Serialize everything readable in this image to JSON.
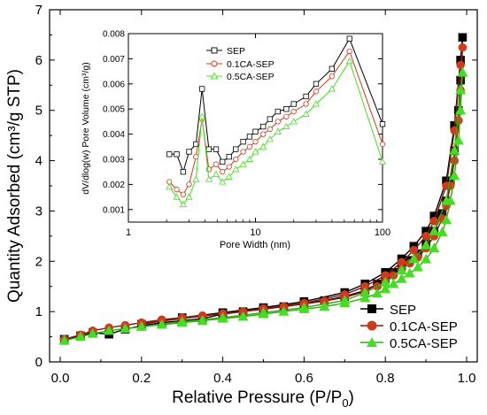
{
  "chart_data": [
    {
      "type": "line",
      "xlabel": "Relative Pressure (P/P",
      "xlabel_sub": "0",
      "xlabel_close": ")",
      "ylabel": "Quantity Adsorbed (cm³/g STP)",
      "xlim": [
        0.0,
        1.0
      ],
      "ylim": [
        0,
        7
      ],
      "xticks": [
        "0.0",
        "0.2",
        "0.4",
        "0.6",
        "0.8",
        "1.0"
      ],
      "yticks": [
        "0",
        "1",
        "2",
        "3",
        "4",
        "5",
        "6",
        "7"
      ],
      "legend_position": "bottom-right",
      "series": [
        {
          "name": "SEP",
          "color": "#000000",
          "marker": "square",
          "x": [
            0.01,
            0.05,
            0.08,
            0.12,
            0.16,
            0.2,
            0.25,
            0.3,
            0.35,
            0.4,
            0.45,
            0.5,
            0.55,
            0.6,
            0.65,
            0.7,
            0.75,
            0.78,
            0.8,
            0.82,
            0.84,
            0.86,
            0.88,
            0.9,
            0.92,
            0.94,
            0.95,
            0.96,
            0.97,
            0.98,
            0.985,
            0.99,
            0.985,
            0.97,
            0.95,
            0.92,
            0.9,
            0.87,
            0.84,
            0.8,
            0.75,
            0.7,
            0.6,
            0.5,
            0.4,
            0.3,
            0.2
          ],
          "y": [
            0.45,
            0.52,
            0.58,
            0.55,
            0.65,
            0.72,
            0.78,
            0.82,
            0.86,
            0.95,
            1.0,
            1.05,
            1.1,
            1.16,
            1.22,
            1.3,
            1.42,
            1.55,
            1.65,
            1.78,
            1.9,
            2.02,
            2.15,
            2.35,
            2.6,
            2.95,
            3.2,
            3.6,
            4.2,
            5.0,
            5.6,
            6.45,
            6.0,
            4.7,
            3.6,
            2.9,
            2.6,
            2.3,
            2.05,
            1.78,
            1.55,
            1.38,
            1.2,
            1.08,
            0.98,
            0.88,
            0.75
          ]
        },
        {
          "name": "0.1CA-SEP",
          "color": "#d03a1a",
          "line_color": "#7a1a10",
          "marker": "circle",
          "x": [
            0.01,
            0.05,
            0.08,
            0.12,
            0.16,
            0.2,
            0.25,
            0.3,
            0.35,
            0.4,
            0.45,
            0.5,
            0.55,
            0.6,
            0.65,
            0.7,
            0.75,
            0.78,
            0.8,
            0.82,
            0.84,
            0.86,
            0.88,
            0.9,
            0.92,
            0.94,
            0.95,
            0.96,
            0.97,
            0.98,
            0.985,
            0.99,
            0.985,
            0.97,
            0.95,
            0.92,
            0.9,
            0.87,
            0.84,
            0.8,
            0.75,
            0.7,
            0.6,
            0.5,
            0.4,
            0.3,
            0.2
          ],
          "y": [
            0.45,
            0.54,
            0.62,
            0.68,
            0.73,
            0.78,
            0.84,
            0.88,
            0.92,
            0.96,
            1.0,
            1.05,
            1.1,
            1.15,
            1.21,
            1.28,
            1.4,
            1.5,
            1.6,
            1.72,
            1.84,
            1.96,
            2.08,
            2.26,
            2.5,
            2.85,
            3.1,
            3.5,
            4.0,
            4.8,
            5.4,
            6.25,
            5.9,
            4.6,
            3.5,
            2.8,
            2.5,
            2.22,
            1.98,
            1.72,
            1.5,
            1.34,
            1.17,
            1.06,
            0.96,
            0.86,
            0.76
          ]
        },
        {
          "name": "0.5CA-SEP",
          "color": "#44dd22",
          "line_color": "#33aa11",
          "marker": "triangle",
          "x": [
            0.01,
            0.05,
            0.08,
            0.12,
            0.16,
            0.2,
            0.25,
            0.3,
            0.35,
            0.4,
            0.45,
            0.5,
            0.55,
            0.6,
            0.65,
            0.7,
            0.75,
            0.78,
            0.8,
            0.82,
            0.84,
            0.86,
            0.88,
            0.9,
            0.92,
            0.94,
            0.95,
            0.96,
            0.97,
            0.98,
            0.985,
            0.99,
            0.985,
            0.97,
            0.95,
            0.92,
            0.9,
            0.87,
            0.84,
            0.8,
            0.75,
            0.7,
            0.6,
            0.5,
            0.4,
            0.3,
            0.2
          ],
          "y": [
            0.42,
            0.5,
            0.56,
            0.62,
            0.66,
            0.7,
            0.74,
            0.78,
            0.82,
            0.86,
            0.9,
            0.95,
            1.0,
            1.05,
            1.1,
            1.17,
            1.27,
            1.36,
            1.45,
            1.55,
            1.65,
            1.76,
            1.88,
            2.04,
            2.26,
            2.58,
            2.82,
            3.2,
            3.7,
            4.4,
            5.0,
            5.75,
            5.4,
            4.2,
            3.2,
            2.6,
            2.32,
            2.05,
            1.82,
            1.58,
            1.38,
            1.22,
            1.08,
            0.98,
            0.88,
            0.8,
            0.7
          ]
        }
      ]
    },
    {
      "type": "line",
      "xlabel": "Pore Width (nm)",
      "ylabel": "dV/dlog(w) Pore Volume (cm³/g)",
      "x_scale": "log",
      "xlim": [
        1,
        100
      ],
      "ylim": [
        0.0005,
        0.008
      ],
      "xticks": [
        "1",
        "10",
        "100"
      ],
      "yticks": [
        "0.001",
        "0.002",
        "0.003",
        "0.004",
        "0.005",
        "0.006",
        "0.007",
        "0.008"
      ],
      "legend_position": "top-left",
      "series": [
        {
          "name": "SEP",
          "color": "#000000",
          "marker": "square",
          "x": [
            2.1,
            2.4,
            2.7,
            3.0,
            3.4,
            3.8,
            4.3,
            4.9,
            5.5,
            6.2,
            7.0,
            8.0,
            9.0,
            10.0,
            11.5,
            13.0,
            15.0,
            17.5,
            20.0,
            25.0,
            30.0,
            40.0,
            55.0,
            100.0
          ],
          "y": [
            0.0032,
            0.0032,
            0.0025,
            0.0033,
            0.0036,
            0.0058,
            0.0034,
            0.0034,
            0.0029,
            0.0031,
            0.0034,
            0.0037,
            0.0039,
            0.0041,
            0.0043,
            0.0046,
            0.0049,
            0.005,
            0.0052,
            0.0055,
            0.006,
            0.0066,
            0.0078,
            0.0044
          ]
        },
        {
          "name": "0.1CA-SEP",
          "color": "#d03a1a",
          "marker": "circle",
          "x": [
            2.1,
            2.4,
            2.7,
            3.0,
            3.4,
            3.8,
            4.3,
            4.9,
            5.5,
            6.2,
            7.0,
            8.0,
            9.0,
            10.0,
            11.5,
            13.0,
            15.0,
            17.5,
            20.0,
            25.0,
            30.0,
            40.0,
            55.0,
            100.0
          ],
          "y": [
            0.0021,
            0.0018,
            0.0016,
            0.002,
            0.0031,
            0.0046,
            0.0026,
            0.0028,
            0.0025,
            0.0027,
            0.003,
            0.0033,
            0.0035,
            0.0037,
            0.004,
            0.0042,
            0.0045,
            0.0047,
            0.0049,
            0.0052,
            0.0057,
            0.0063,
            0.0073,
            0.0036
          ]
        },
        {
          "name": "0.5CA-SEP",
          "color": "#44dd22",
          "marker": "triangle",
          "x": [
            2.1,
            2.4,
            2.7,
            3.0,
            3.4,
            3.8,
            4.3,
            4.9,
            5.5,
            6.2,
            7.0,
            8.0,
            9.0,
            10.0,
            11.5,
            13.0,
            15.0,
            17.5,
            20.0,
            25.0,
            30.0,
            40.0,
            55.0,
            100.0
          ],
          "y": [
            0.0019,
            0.0015,
            0.0012,
            0.0015,
            0.0022,
            0.0047,
            0.0022,
            0.0024,
            0.0021,
            0.0023,
            0.0026,
            0.0028,
            0.003,
            0.0033,
            0.0035,
            0.0038,
            0.0041,
            0.0043,
            0.0045,
            0.0048,
            0.0052,
            0.0058,
            0.0069,
            0.0029
          ]
        }
      ]
    }
  ]
}
